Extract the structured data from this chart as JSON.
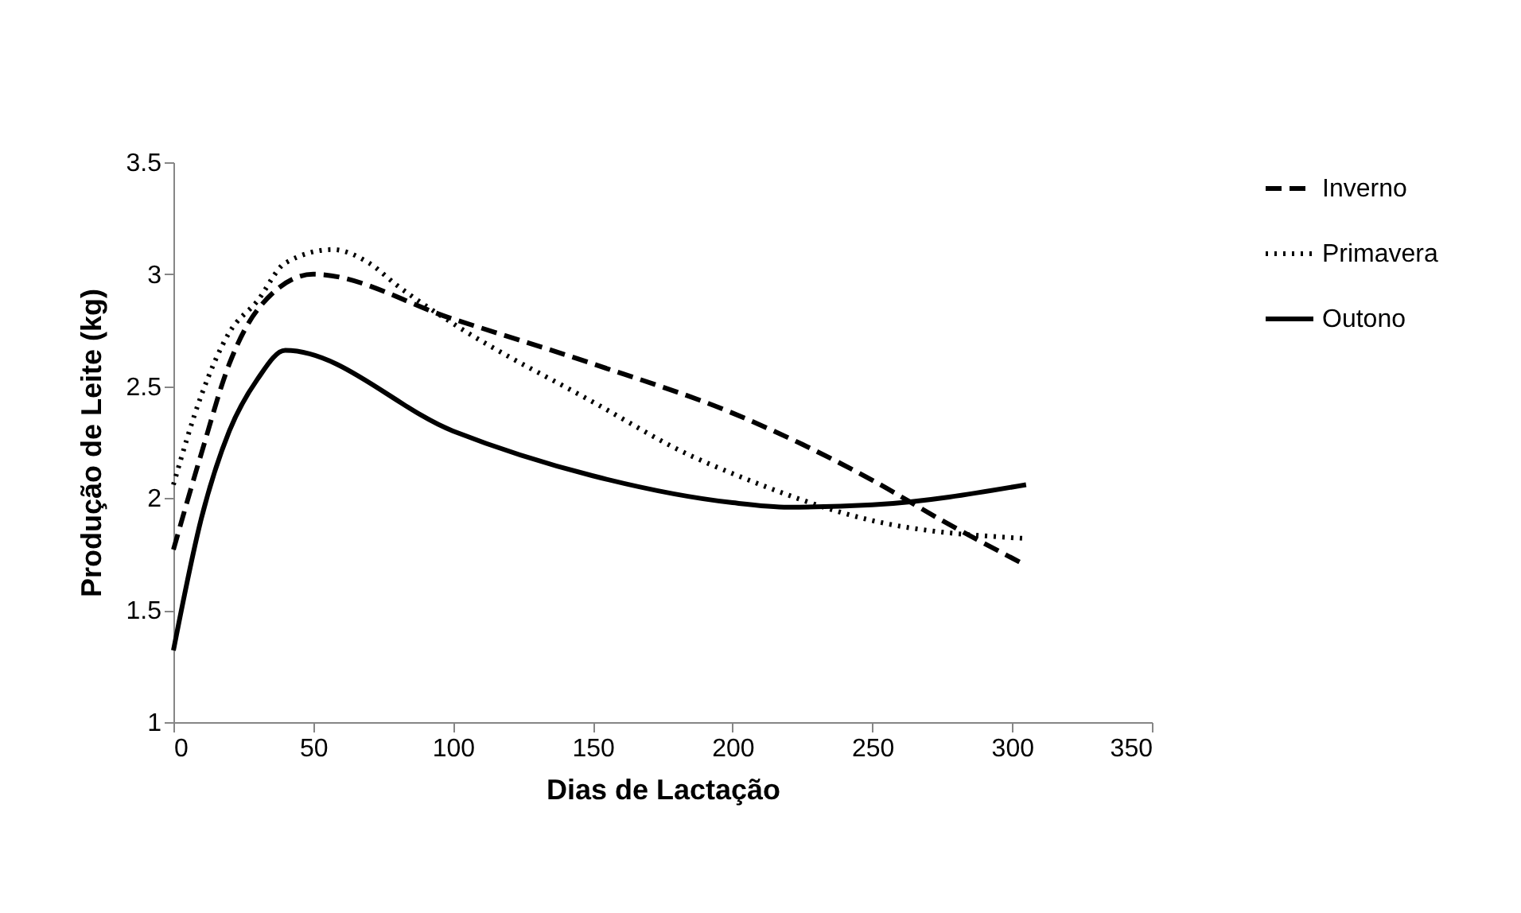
{
  "chart_data": {
    "type": "line",
    "xlabel": "Dias de Lactação",
    "ylabel": "Produção de Leite (kg)",
    "xlim": [
      0,
      350
    ],
    "xticks": [
      0,
      50,
      100,
      150,
      200,
      250,
      300,
      350
    ],
    "ylim": [
      1,
      3.5
    ],
    "yticks": [
      1,
      1.5,
      2,
      2.5,
      3,
      3.5
    ],
    "grid": false,
    "legend": "right",
    "marker": "none",
    "series": [
      {
        "name": "Inverno",
        "color": "#000000",
        "line_style": "dashed",
        "x": [
          0,
          10,
          20,
          30,
          50,
          100,
          150,
          200,
          225,
          250,
          275,
          305
        ],
        "values": [
          1.77,
          2.2,
          2.6,
          2.84,
          3.0,
          2.8,
          2.6,
          2.38,
          2.24,
          2.08,
          1.9,
          1.7
        ]
      },
      {
        "name": "Primavera",
        "color": "#000000",
        "line_style": "dotted",
        "x": [
          0,
          10,
          20,
          30,
          40,
          57,
          70,
          80,
          100,
          150,
          185,
          200,
          250,
          305
        ],
        "values": [
          2.06,
          2.46,
          2.74,
          2.88,
          3.05,
          3.11,
          3.05,
          2.95,
          2.78,
          2.43,
          2.19,
          2.11,
          1.9,
          1.82
        ]
      },
      {
        "name": "Outono",
        "color": "#000000",
        "line_style": "solid",
        "x": [
          0,
          10,
          20,
          30,
          40,
          100,
          150,
          200,
          220,
          250,
          305
        ],
        "values": [
          1.32,
          1.91,
          2.3,
          2.53,
          2.66,
          2.3,
          2.1,
          1.98,
          1.96,
          1.97,
          2.06
        ]
      }
    ]
  }
}
